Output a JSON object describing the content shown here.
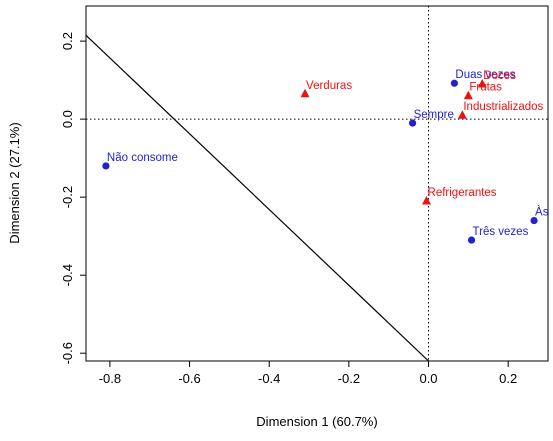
{
  "chart_data": {
    "type": "scatter",
    "title": "",
    "xlabel": "Dimension 1 (60.7%)",
    "ylabel": "Dimension 2 (27.1%)",
    "xlim": [
      -0.86,
      0.3
    ],
    "ylim": [
      -0.62,
      0.29
    ],
    "x_ticks": [
      -0.8,
      -0.6,
      -0.4,
      -0.2,
      0.0,
      0.2
    ],
    "x_tick_labels": [
      "-0.8",
      "-0.6",
      "-0.4",
      "-0.2",
      "0.0",
      "0.2"
    ],
    "y_ticks": [
      -0.6,
      -0.4,
      -0.2,
      0.0,
      0.2
    ],
    "y_tick_labels": [
      "-0.6",
      "-0.4",
      "-0.2",
      "0.0",
      "0.2"
    ],
    "grid": false,
    "reference_lines": {
      "x": 0,
      "y": 0,
      "style": "dotted"
    },
    "trend_line": {
      "from": [
        -0.86,
        0.215
      ],
      "to": [
        0.0,
        -0.62
      ]
    },
    "colors": {
      "frequency": "#2222cc",
      "food": "#ee1111",
      "axes": "#000000"
    },
    "series": [
      {
        "marker": "circle",
        "color": "#2222cc",
        "points": [
          {
            "label": "Não consome",
            "x": -0.81,
            "y": -0.12
          },
          {
            "label": "Sempre",
            "x": -0.04,
            "y": -0.01
          },
          {
            "label": "Duas vezes",
            "x": 0.065,
            "y": 0.092
          },
          {
            "label": "Três vezes",
            "x": 0.108,
            "y": -0.31
          },
          {
            "label": "Às",
            "x": 0.265,
            "y": -0.26
          }
        ]
      },
      {
        "marker": "triangle",
        "color": "#ee1111",
        "points": [
          {
            "label": "Verduras",
            "x": -0.31,
            "y": 0.065
          },
          {
            "label": "Doces",
            "x": 0.135,
            "y": 0.09
          },
          {
            "label": "Frutas",
            "x": 0.1,
            "y": 0.06
          },
          {
            "label": "Industrializados",
            "x": 0.085,
            "y": 0.01
          },
          {
            "label": "Refrigerantes",
            "x": -0.005,
            "y": -0.21
          }
        ]
      }
    ]
  }
}
